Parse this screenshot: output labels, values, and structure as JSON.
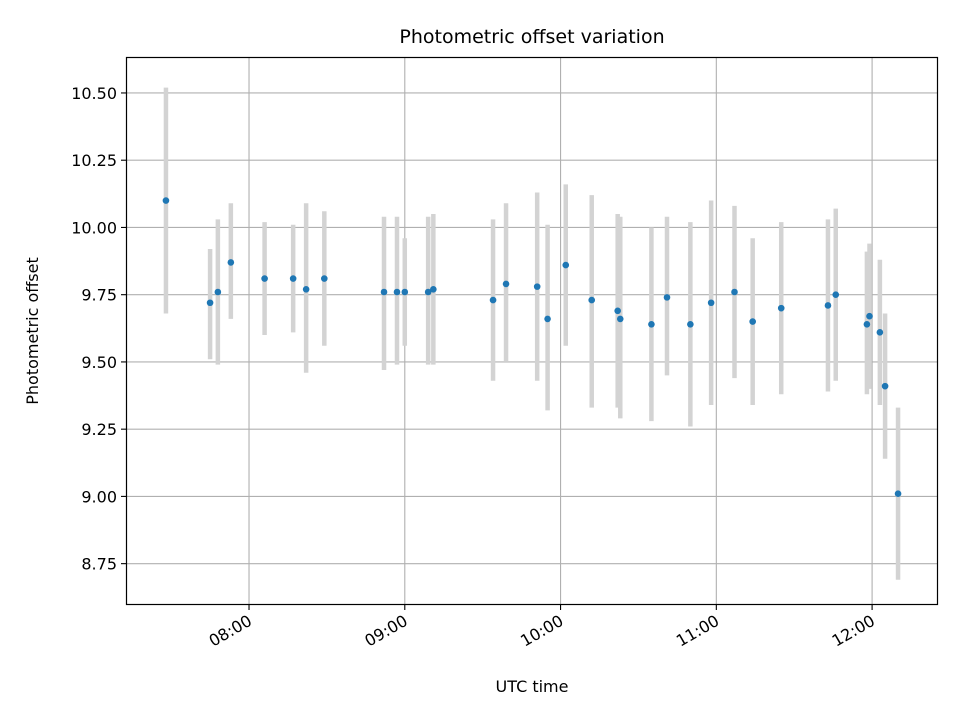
{
  "chart_data": {
    "type": "scatter",
    "title": "Photometric offset variation",
    "xlabel": "UTC time",
    "ylabel": "Photometric offset",
    "x_unit": "UTC hh:mm",
    "xlim": [
      "07:13",
      "12:25"
    ],
    "ylim": [
      8.6,
      10.63
    ],
    "x_ticks": [
      "08:00",
      "09:00",
      "10:00",
      "11:00",
      "12:00"
    ],
    "y_ticks": [
      "8.75",
      "9.00",
      "9.25",
      "9.50",
      "9.75",
      "10.00",
      "10.25",
      "10.50"
    ],
    "grid": true,
    "legend": "none",
    "point_color": "#1f77b4",
    "errorbar_color": "#d3d3d3",
    "series": [
      {
        "points": [
          {
            "x": "07:28",
            "y": 10.1,
            "ylo": 9.68,
            "yhi": 10.52
          },
          {
            "x": "07:45",
            "y": 9.72,
            "ylo": 9.51,
            "yhi": 9.92
          },
          {
            "x": "07:48",
            "y": 9.76,
            "ylo": 9.49,
            "yhi": 10.03
          },
          {
            "x": "07:53",
            "y": 9.87,
            "ylo": 9.66,
            "yhi": 10.09
          },
          {
            "x": "08:06",
            "y": 9.81,
            "ylo": 9.6,
            "yhi": 10.02
          },
          {
            "x": "08:17",
            "y": 9.81,
            "ylo": 9.61,
            "yhi": 10.01
          },
          {
            "x": "08:22",
            "y": 9.77,
            "ylo": 9.46,
            "yhi": 10.09
          },
          {
            "x": "08:29",
            "y": 9.81,
            "ylo": 9.56,
            "yhi": 10.06
          },
          {
            "x": "08:52",
            "y": 9.76,
            "ylo": 9.47,
            "yhi": 10.04
          },
          {
            "x": "08:57",
            "y": 9.76,
            "ylo": 9.49,
            "yhi": 10.04
          },
          {
            "x": "09:00",
            "y": 9.76,
            "ylo": 9.56,
            "yhi": 9.96
          },
          {
            "x": "09:09",
            "y": 9.76,
            "ylo": 9.49,
            "yhi": 10.04
          },
          {
            "x": "09:11",
            "y": 9.77,
            "ylo": 9.49,
            "yhi": 10.05
          },
          {
            "x": "09:34",
            "y": 9.73,
            "ylo": 9.43,
            "yhi": 10.03
          },
          {
            "x": "09:39",
            "y": 9.79,
            "ylo": 9.5,
            "yhi": 10.09
          },
          {
            "x": "09:51",
            "y": 9.78,
            "ylo": 9.43,
            "yhi": 10.13
          },
          {
            "x": "09:55",
            "y": 9.66,
            "ylo": 9.32,
            "yhi": 10.01
          },
          {
            "x": "10:02",
            "y": 9.86,
            "ylo": 9.56,
            "yhi": 10.16
          },
          {
            "x": "10:12",
            "y": 9.73,
            "ylo": 9.33,
            "yhi": 10.12
          },
          {
            "x": "10:22",
            "y": 9.69,
            "ylo": 9.33,
            "yhi": 10.05
          },
          {
            "x": "10:23",
            "y": 9.66,
            "ylo": 9.29,
            "yhi": 10.04
          },
          {
            "x": "10:35",
            "y": 9.64,
            "ylo": 9.28,
            "yhi": 10.0
          },
          {
            "x": "10:41",
            "y": 9.74,
            "ylo": 9.45,
            "yhi": 10.04
          },
          {
            "x": "10:50",
            "y": 9.64,
            "ylo": 9.26,
            "yhi": 10.02
          },
          {
            "x": "10:58",
            "y": 9.72,
            "ylo": 9.34,
            "yhi": 10.1
          },
          {
            "x": "11:07",
            "y": 9.76,
            "ylo": 9.44,
            "yhi": 10.08
          },
          {
            "x": "11:14",
            "y": 9.65,
            "ylo": 9.34,
            "yhi": 9.96
          },
          {
            "x": "11:25",
            "y": 9.7,
            "ylo": 9.38,
            "yhi": 10.02
          },
          {
            "x": "11:43",
            "y": 9.71,
            "ylo": 9.39,
            "yhi": 10.03
          },
          {
            "x": "11:46",
            "y": 9.75,
            "ylo": 9.43,
            "yhi": 10.07
          },
          {
            "x": "11:58",
            "y": 9.64,
            "ylo": 9.38,
            "yhi": 9.91
          },
          {
            "x": "11:59",
            "y": 9.67,
            "ylo": 9.4,
            "yhi": 9.94
          },
          {
            "x": "12:03",
            "y": 9.61,
            "ylo": 9.34,
            "yhi": 9.88
          },
          {
            "x": "12:05",
            "y": 9.41,
            "ylo": 9.14,
            "yhi": 9.68
          },
          {
            "x": "12:10",
            "y": 9.01,
            "ylo": 8.69,
            "yhi": 9.33
          }
        ]
      }
    ]
  }
}
